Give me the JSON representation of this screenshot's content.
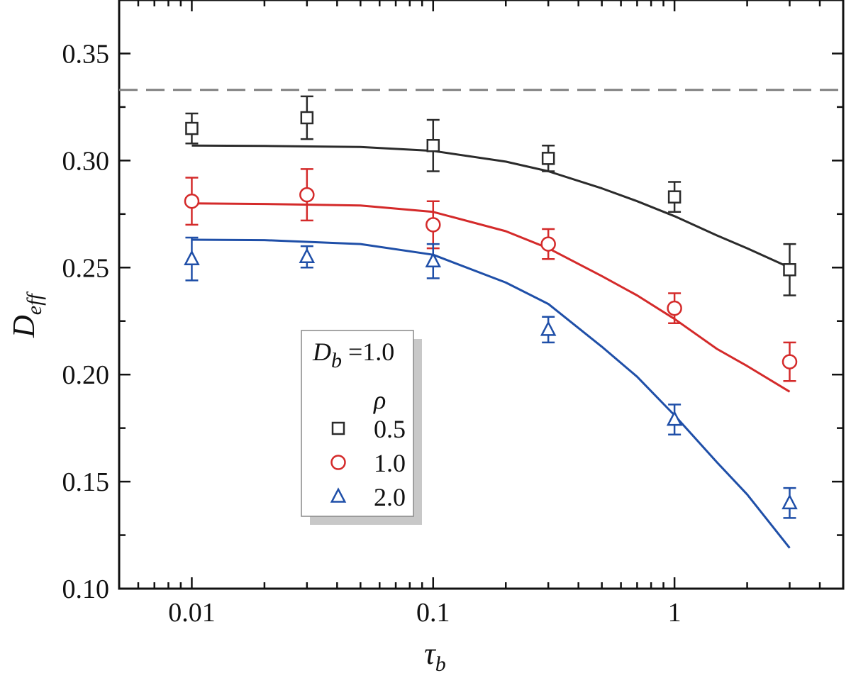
{
  "chart_data": {
    "type": "scatter",
    "xlabel": "τ",
    "xlabel_subscript": "b",
    "ylabel": "D",
    "ylabel_subscript": "eff",
    "x_scale": "log",
    "xlim": [
      0.005,
      5
    ],
    "ylim": [
      0.1,
      0.375
    ],
    "x_ticks": [
      0.01,
      0.1,
      1
    ],
    "x_tick_labels": [
      "0.01",
      "0.1",
      "1"
    ],
    "y_ticks": [
      0.1,
      0.15,
      0.2,
      0.25,
      0.3,
      0.35
    ],
    "y_tick_labels": [
      "0.10",
      "0.15",
      "0.20",
      "0.25",
      "0.30",
      "0.35"
    ],
    "reference_line": {
      "y": 0.333,
      "style": "dashed",
      "color": "#808080"
    },
    "legend": {
      "title_var": "D",
      "title_sub": "b",
      "title_value": " =1.0",
      "header": "ρ",
      "placement": "lower-left"
    },
    "series": [
      {
        "name": "0.5",
        "marker": "square",
        "color": "#2b2b2b",
        "x": [
          0.01,
          0.03,
          0.1,
          0.3,
          1,
          3
        ],
        "y": [
          0.315,
          0.32,
          0.307,
          0.301,
          0.283,
          0.249
        ],
        "err": [
          0.007,
          0.01,
          0.012,
          0.006,
          0.007,
          0.012
        ],
        "fit_x": [
          0.01,
          0.02,
          0.05,
          0.1,
          0.2,
          0.3,
          0.5,
          0.7,
          1,
          1.5,
          2,
          3
        ],
        "fit_y": [
          0.307,
          0.3068,
          0.3063,
          0.3045,
          0.2995,
          0.295,
          0.287,
          0.281,
          0.274,
          0.265,
          0.259,
          0.25
        ]
      },
      {
        "name": "1.0",
        "marker": "circle",
        "color": "#d42a2a",
        "x": [
          0.01,
          0.03,
          0.1,
          0.3,
          1,
          3
        ],
        "y": [
          0.281,
          0.284,
          0.27,
          0.261,
          0.231,
          0.206
        ],
        "err": [
          0.011,
          0.012,
          0.011,
          0.007,
          0.007,
          0.009
        ],
        "fit_x": [
          0.01,
          0.02,
          0.05,
          0.1,
          0.2,
          0.3,
          0.5,
          0.7,
          1,
          1.5,
          2,
          3
        ],
        "fit_y": [
          0.28,
          0.2797,
          0.279,
          0.276,
          0.267,
          0.259,
          0.246,
          0.237,
          0.226,
          0.212,
          0.204,
          0.192
        ]
      },
      {
        "name": "2.0",
        "marker": "triangle",
        "color": "#1f4fa8",
        "x": [
          0.01,
          0.03,
          0.1,
          0.3,
          1,
          3
        ],
        "y": [
          0.254,
          0.255,
          0.253,
          0.221,
          0.179,
          0.14
        ],
        "err": [
          0.01,
          0.005,
          0.008,
          0.006,
          0.007,
          0.007
        ],
        "fit_x": [
          0.01,
          0.02,
          0.05,
          0.1,
          0.2,
          0.3,
          0.5,
          0.7,
          1,
          1.5,
          2,
          3
        ],
        "fit_y": [
          0.263,
          0.2628,
          0.261,
          0.256,
          0.243,
          0.233,
          0.213,
          0.199,
          0.181,
          0.159,
          0.144,
          0.119
        ]
      }
    ]
  }
}
